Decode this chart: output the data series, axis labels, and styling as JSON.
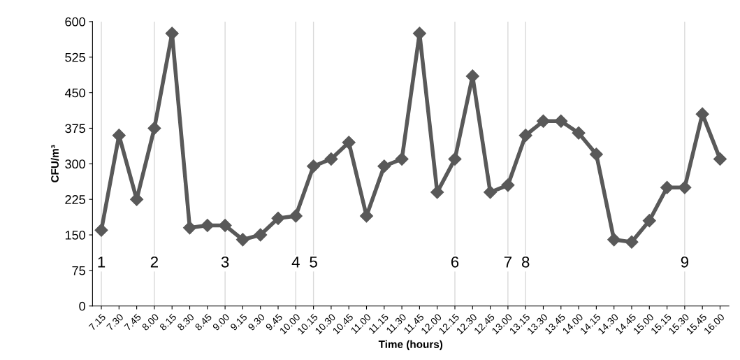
{
  "chart_data": {
    "type": "line",
    "xlabel": "Time (hours)",
    "ylabel": "CFU/m³",
    "categories": [
      "7.15",
      "7.30",
      "7.45",
      "8.00",
      "8.15",
      "8.30",
      "8.45",
      "9.00",
      "9.15",
      "9.30",
      "9.45",
      "10.00",
      "10.15",
      "10.30",
      "10.45",
      "11.00",
      "11.15",
      "11.30",
      "11.45",
      "12.00",
      "12.15",
      "12.30",
      "12.45",
      "13.00",
      "13.15",
      "13.30",
      "13.45",
      "14.00",
      "14.15",
      "14.30",
      "14.45",
      "15.00",
      "15.15",
      "15.30",
      "15.45",
      "16.00"
    ],
    "series": [
      {
        "color": "#595959",
        "values": [
          160,
          360,
          225,
          375,
          575,
          165,
          170,
          170,
          140,
          150,
          185,
          190,
          295,
          310,
          345,
          190,
          295,
          310,
          575,
          240,
          310,
          485,
          240,
          255,
          360,
          390,
          390,
          365,
          320,
          140,
          135,
          180,
          250,
          250,
          405,
          310
        ]
      }
    ],
    "ylim": [
      0,
      600
    ],
    "yticks": [
      0,
      75,
      150,
      225,
      300,
      375,
      450,
      525,
      600
    ],
    "grid": false,
    "legend": false,
    "marker": "diamond",
    "line_style": "solid",
    "ref_lines": [
      {
        "axis": "x",
        "value": "7.15",
        "label": "1",
        "color": "#d9d9d9"
      },
      {
        "axis": "x",
        "value": "8.00",
        "label": "2",
        "color": "#d9d9d9"
      },
      {
        "axis": "x",
        "value": "9.00",
        "label": "3",
        "color": "#d9d9d9"
      },
      {
        "axis": "x",
        "value": "10.00",
        "label": "4",
        "color": "#d9d9d9"
      },
      {
        "axis": "x",
        "value": "10.15",
        "label": "5",
        "color": "#d9d9d9"
      },
      {
        "axis": "x",
        "value": "12.15",
        "label": "6",
        "color": "#d9d9d9"
      },
      {
        "axis": "x",
        "value": "13.00",
        "label": "7",
        "color": "#d9d9d9"
      },
      {
        "axis": "x",
        "value": "13.15",
        "label": "8",
        "color": "#d9d9d9"
      },
      {
        "axis": "x",
        "value": "15.30",
        "label": "9",
        "color": "#d9d9d9"
      }
    ]
  }
}
